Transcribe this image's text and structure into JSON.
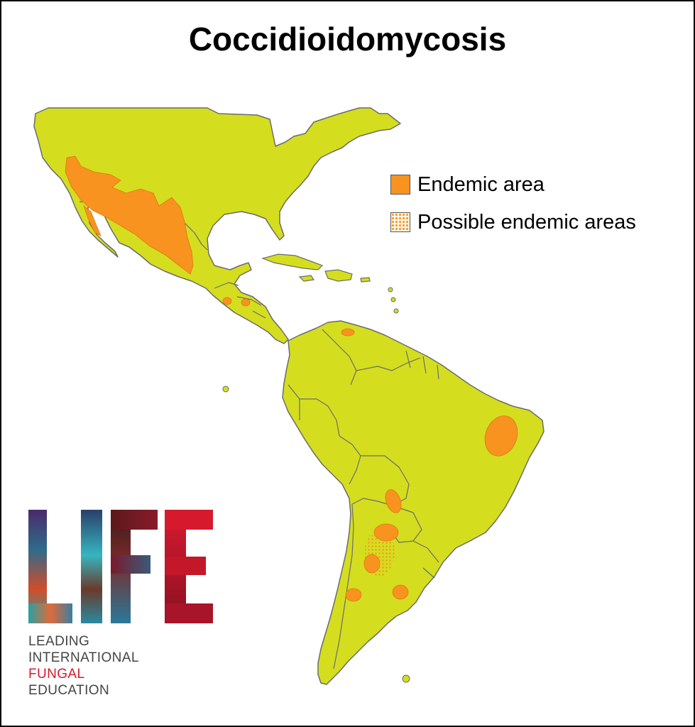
{
  "title": "Coccidioidomycosis",
  "legend": {
    "endemic_label": "Endemic area",
    "possible_label": "Possible endemic areas"
  },
  "colors": {
    "land": "#D4DE1F",
    "border": "#6b6b6b",
    "endemic": "#F7931E",
    "possible_dots": "#F7931E",
    "logo_red": "#d7192d"
  },
  "logo": {
    "letters": "LIFE",
    "line1": "LEADING",
    "line2": "INTERNATIONAL",
    "line3": "FUNGAL",
    "line4": "EDUCATION"
  }
}
